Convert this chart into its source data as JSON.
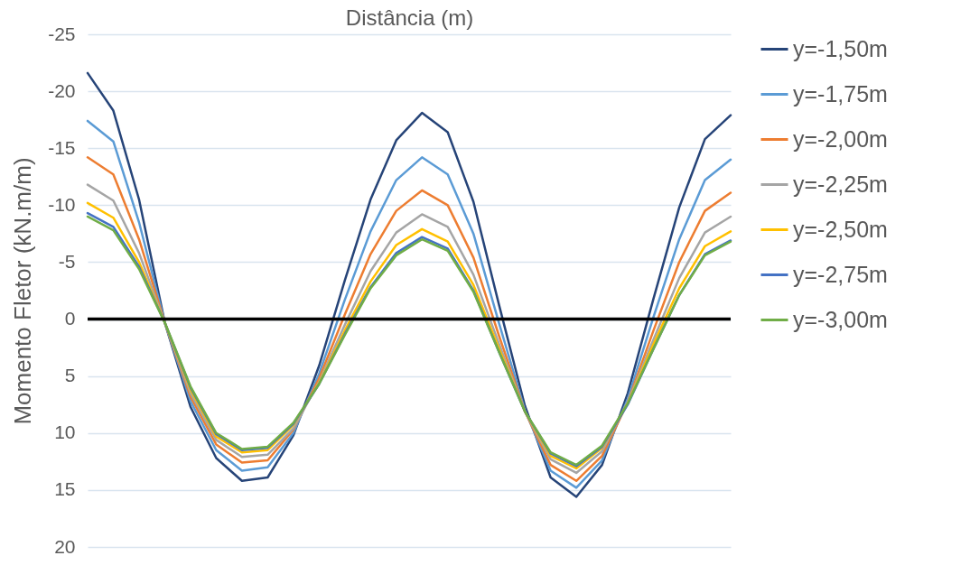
{
  "chart_data": {
    "type": "line",
    "xlabel": "Distância (m)",
    "ylabel": "Momento Fletor (kN.m/m)",
    "categories": [
      null,
      null,
      null,
      null,
      null,
      null,
      null,
      null,
      null,
      null,
      null,
      null,
      null,
      null,
      null,
      null,
      null,
      null,
      null,
      null,
      null,
      null,
      null,
      null,
      null,
      null
    ],
    "ylim": [
      20,
      -25
    ],
    "yticks": [
      -25,
      -20,
      -15,
      -10,
      -5,
      0,
      5,
      10,
      15,
      20
    ],
    "grid": "y",
    "legend": "right",
    "marker": "none",
    "line_style": "solid",
    "tick_labels": "y",
    "ref_lines": [
      {
        "axis": "y",
        "value": 0,
        "color": "#000000"
      }
    ],
    "series": [
      {
        "name": "y=-1,50m",
        "color": "#264478",
        "values": [
          -21.6,
          -18.3,
          -10.5,
          0.3,
          7.7,
          12.2,
          14.2,
          13.9,
          10.2,
          4.1,
          -3.4,
          -10.5,
          -15.7,
          -18.1,
          -16.4,
          -10.3,
          -1.2,
          7.6,
          13.9,
          15.6,
          12.8,
          6.5,
          -1.8,
          -9.8,
          -15.8,
          -17.9
        ]
      },
      {
        "name": "y=-1,75m",
        "color": "#5b9bd5",
        "values": [
          -17.4,
          -15.6,
          -8.5,
          0.3,
          7.2,
          11.5,
          13.3,
          13.0,
          10.0,
          4.8,
          -1.7,
          -7.7,
          -12.2,
          -14.2,
          -12.7,
          -7.5,
          0.4,
          8.0,
          13.3,
          14.8,
          12.4,
          7.0,
          -0.2,
          -7.0,
          -12.2,
          -14.0
        ]
      },
      {
        "name": "y=-2,00m",
        "color": "#ed7d31",
        "values": [
          -14.2,
          -12.7,
          -7.0,
          0.3,
          6.8,
          11.0,
          12.6,
          12.4,
          9.7,
          5.2,
          -0.4,
          -5.7,
          -9.5,
          -11.3,
          -10.0,
          -5.4,
          1.5,
          8.1,
          12.8,
          14.2,
          12.0,
          7.3,
          1.0,
          -5.0,
          -9.5,
          -11.1
        ]
      },
      {
        "name": "y=-2,25m",
        "color": "#a5a5a5",
        "values": [
          -11.8,
          -10.4,
          -5.8,
          0.3,
          6.5,
          10.6,
          12.1,
          11.9,
          9.6,
          5.5,
          0.5,
          -4.2,
          -7.6,
          -9.2,
          -8.1,
          -3.9,
          2.2,
          8.1,
          12.3,
          13.5,
          11.6,
          7.3,
          1.8,
          -3.6,
          -7.6,
          -9.0
        ]
      },
      {
        "name": "y=-2,50m",
        "color": "#ffc000",
        "values": [
          -10.2,
          -8.9,
          -5.0,
          0.3,
          6.2,
          10.3,
          11.7,
          11.5,
          9.3,
          5.6,
          1.0,
          -3.3,
          -6.5,
          -7.9,
          -6.8,
          -3.0,
          2.6,
          8.1,
          12.0,
          13.1,
          11.3,
          7.4,
          2.2,
          -2.7,
          -6.4,
          -7.7
        ]
      },
      {
        "name": "y=-2,75m",
        "color": "#4472c4",
        "values": [
          -9.3,
          -8.1,
          -4.6,
          0.3,
          6.0,
          10.1,
          11.5,
          11.3,
          9.2,
          5.7,
          1.3,
          -2.8,
          -5.8,
          -7.2,
          -6.2,
          -2.5,
          2.9,
          8.1,
          11.8,
          12.9,
          11.2,
          7.5,
          2.6,
          -2.1,
          -5.7,
          -6.9
        ]
      },
      {
        "name": "y=-3,00m",
        "color": "#70ad47",
        "values": [
          -9.0,
          -7.8,
          -4.4,
          0.3,
          5.9,
          10.0,
          11.4,
          11.2,
          9.1,
          5.7,
          1.4,
          -2.7,
          -5.6,
          -7.0,
          -6.0,
          -2.4,
          2.9,
          8.1,
          11.7,
          12.8,
          11.1,
          7.4,
          2.6,
          -2.1,
          -5.6,
          -6.8
        ]
      }
    ]
  }
}
